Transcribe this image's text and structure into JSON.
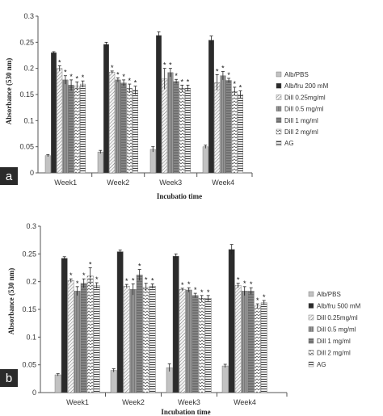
{
  "colors": {
    "bar_colors": [
      "#c2c2c2",
      "#2b2b2b",
      "#dadada",
      "#7a7a7a",
      "#6a6a6a",
      "#e8e8e8",
      "#f0f0f0"
    ],
    "axis": "#555555",
    "panel_label_bg": "#2a2a2a"
  },
  "chart_data": [
    {
      "type": "bar",
      "panel_label": "a",
      "categories": [
        "Week1",
        "Week2",
        "Week3",
        "Week4"
      ],
      "series": [
        {
          "name": "Alb/PBS",
          "values": [
            0.033,
            0.04,
            0.045,
            0.05
          ],
          "errors": [
            0.002,
            0.003,
            0.005,
            0.003
          ],
          "sig": [
            false,
            false,
            false,
            false
          ]
        },
        {
          "name": "Alb/fru 200 mM",
          "values": [
            0.23,
            0.246,
            0.263,
            0.254
          ],
          "errors": [
            0.002,
            0.004,
            0.007,
            0.008
          ],
          "sig": [
            false,
            false,
            false,
            false
          ]
        },
        {
          "name": "Dill 0.25mg/ml",
          "values": [
            0.2,
            0.193,
            0.18,
            0.173
          ],
          "errors": [
            0.005,
            0.002,
            0.02,
            0.015
          ],
          "sig": [
            true,
            true,
            true,
            true
          ]
        },
        {
          "name": "Dill 0.5 mg/ml",
          "values": [
            0.178,
            0.178,
            0.192,
            0.186
          ],
          "errors": [
            0.008,
            0.004,
            0.008,
            0.008
          ],
          "sig": [
            true,
            true,
            true,
            true
          ]
        },
        {
          "name": "Dill 1 mg/ml",
          "values": [
            0.168,
            0.172,
            0.175,
            0.177
          ],
          "errors": [
            0.01,
            0.006,
            0.004,
            0.004
          ],
          "sig": [
            true,
            true,
            true,
            true
          ]
        },
        {
          "name": "Dill 2 mg/ml",
          "values": [
            0.166,
            0.162,
            0.162,
            0.156
          ],
          "errors": [
            0.008,
            0.008,
            0.006,
            0.008
          ],
          "sig": [
            true,
            true,
            true,
            true
          ]
        },
        {
          "name": "AG",
          "values": [
            0.17,
            0.158,
            0.162,
            0.15
          ],
          "errors": [
            0.006,
            0.008,
            0.006,
            0.007
          ],
          "sig": [
            true,
            true,
            true,
            true
          ]
        }
      ],
      "ylabel": "Absorbance (530 nm)",
      "xlabel": "Incubatio time",
      "ylim": [
        0,
        0.3
      ],
      "yticks": [
        "0",
        "0.05",
        "0.1",
        "0.15",
        "0.2",
        "0.25",
        "0.3"
      ],
      "star": "*",
      "legend_position": "right",
      "grid": false
    },
    {
      "type": "bar",
      "panel_label": "b",
      "categories": [
        "Week1",
        "Week2",
        "Week3",
        "Week4"
      ],
      "series": [
        {
          "name": "Alb/PBS",
          "values": [
            0.032,
            0.04,
            0.045,
            0.048
          ],
          "errors": [
            0.002,
            0.003,
            0.007,
            0.003
          ],
          "sig": [
            false,
            false,
            false,
            false
          ]
        },
        {
          "name": "Alb/fru 500 mM",
          "values": [
            0.242,
            0.254,
            0.246,
            0.258
          ],
          "errors": [
            0.003,
            0.003,
            0.004,
            0.009
          ],
          "sig": [
            false,
            false,
            false,
            false
          ]
        },
        {
          "name": "Dill 0.25mg/ml",
          "values": [
            0.202,
            0.192,
            0.186,
            0.193
          ],
          "errors": [
            0.003,
            0.003,
            0.002,
            0.004
          ],
          "sig": [
            true,
            true,
            true,
            true
          ]
        },
        {
          "name": "Dill 0.5 mg/ml",
          "values": [
            0.183,
            0.186,
            0.185,
            0.183
          ],
          "errors": [
            0.008,
            0.01,
            0.004,
            0.008
          ],
          "sig": [
            true,
            true,
            true,
            true
          ]
        },
        {
          "name": "Dill 1 mg/ml",
          "values": [
            0.197,
            0.212,
            0.175,
            0.183
          ],
          "errors": [
            0.008,
            0.01,
            0.004,
            0.006
          ],
          "sig": [
            true,
            true,
            true,
            true
          ]
        },
        {
          "name": "Dill 2 mg/ml",
          "values": [
            0.21,
            0.19,
            0.17,
            0.156
          ],
          "errors": [
            0.015,
            0.007,
            0.005,
            0.004
          ],
          "sig": [
            true,
            true,
            true,
            true
          ]
        },
        {
          "name": "AG",
          "values": [
            0.193,
            0.192,
            0.17,
            0.162
          ],
          "errors": [
            0.005,
            0.004,
            0.005,
            0.004
          ],
          "sig": [
            true,
            true,
            true,
            true
          ]
        }
      ],
      "ylabel": "Absorbance (530 nm)",
      "xlabel": "Incubation time",
      "ylim": [
        0,
        0.3
      ],
      "yticks": [
        "0",
        "0.05",
        "0.1",
        "0.15",
        "0.2",
        "0.25",
        "0.3"
      ],
      "star": "*",
      "legend_position": "right",
      "grid": false
    }
  ]
}
